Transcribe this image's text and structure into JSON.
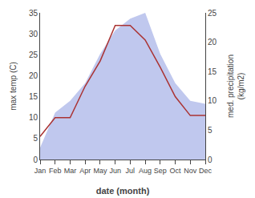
{
  "chart_data": {
    "type": "line",
    "categories": [
      "Jan",
      "Feb",
      "Mar",
      "Apr",
      "May",
      "Jun",
      "Jul",
      "Aug",
      "Sep",
      "Oct",
      "Nov",
      "Dec"
    ],
    "series": [
      {
        "type": "area",
        "color": "#c0c8ee",
        "axis": "y2",
        "values": [
          2.0,
          8.0,
          10.0,
          13.0,
          18.0,
          22.0,
          24.0,
          25.0,
          18.0,
          13.0,
          10.0,
          9.5
        ]
      },
      {
        "type": "line",
        "color": "#aa3333",
        "values": [
          5.5,
          10.0,
          10.0,
          17.5,
          23.5,
          32.0,
          32.0,
          28.5,
          22.0,
          15.0,
          10.5,
          10.5
        ]
      }
    ],
    "xlabel": "date (month)",
    "ylabel": "max temp (C)",
    "y2label": "med. precipitation\n(kg/m2)",
    "ylim": [
      0,
      35
    ],
    "yticks": [
      0,
      5,
      10,
      15,
      20,
      25,
      30,
      35
    ],
    "y2lim": [
      0,
      25
    ],
    "y2ticks": [
      0,
      5,
      10,
      15,
      20,
      25
    ],
    "grid": false
  }
}
